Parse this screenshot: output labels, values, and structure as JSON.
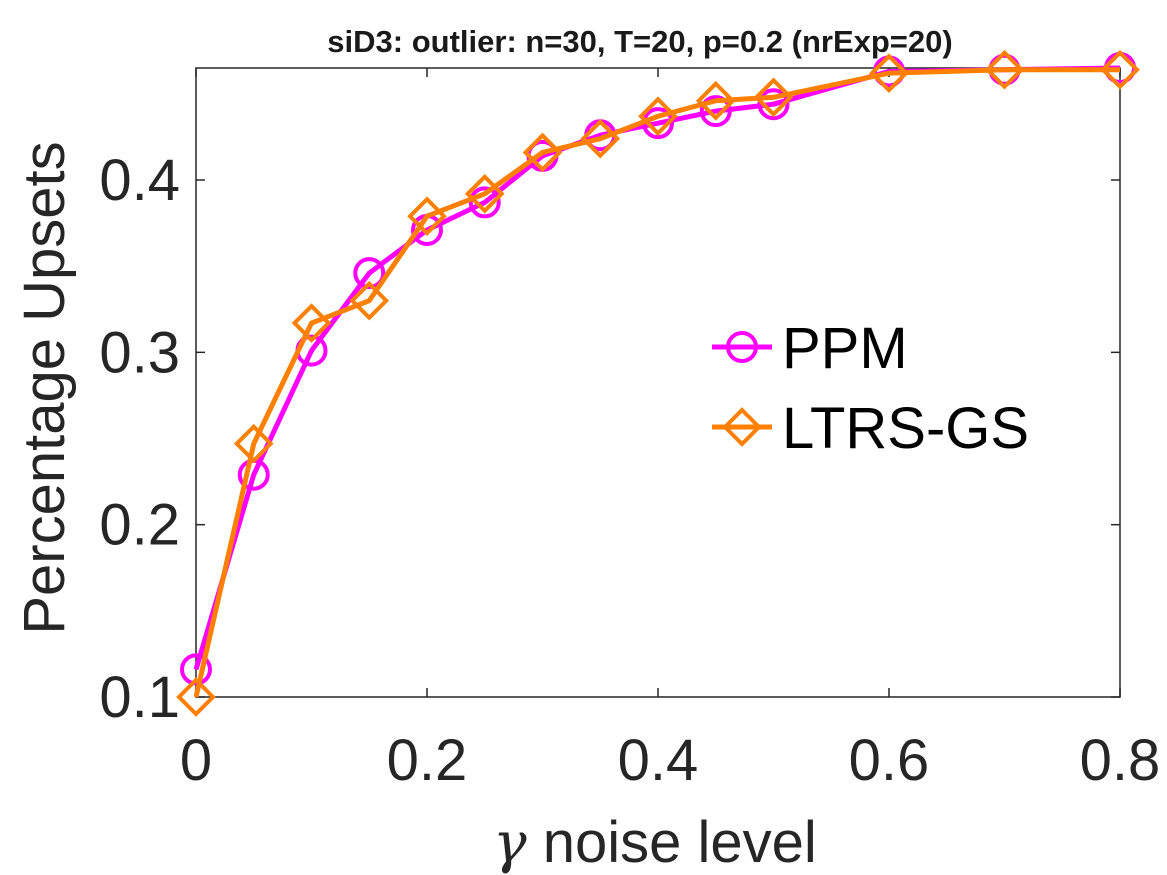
{
  "chart_data": {
    "type": "line",
    "title": "siD3: outlier: n=30, T=20, p=0.2 (nrExp=20)",
    "xlabel": {
      "symbol": "γ",
      "text": " noise level"
    },
    "ylabel": "Percentage Upsets",
    "xlim": [
      0,
      0.8
    ],
    "ylim": [
      0.1,
      0.465
    ],
    "xticks": [
      0,
      0.2,
      0.4,
      0.6,
      0.8
    ],
    "xtick_labels": [
      "0",
      "0.2",
      "0.4",
      "0.6",
      "0.8"
    ],
    "yticks": [
      0.1,
      0.2,
      0.3,
      0.4
    ],
    "ytick_labels": [
      "0.1",
      "0.2",
      "0.3",
      "0.4"
    ],
    "grid": false,
    "legend_position": "center-right",
    "x": [
      0,
      0.05,
      0.1,
      0.15,
      0.2,
      0.25,
      0.3,
      0.35,
      0.4,
      0.45,
      0.5,
      0.6,
      0.7,
      0.8
    ],
    "series": [
      {
        "name": "PPM",
        "color": "#ff00ff",
        "marker": "circle",
        "values": [
          0.116,
          0.229,
          0.301,
          0.346,
          0.371,
          0.387,
          0.414,
          0.426,
          0.433,
          0.44,
          0.444,
          0.463,
          0.464,
          0.465
        ]
      },
      {
        "name": "LTRS-GS",
        "color": "#ff8000",
        "marker": "diamond",
        "values": [
          0.1,
          0.247,
          0.317,
          0.33,
          0.379,
          0.392,
          0.416,
          0.424,
          0.437,
          0.446,
          0.448,
          0.462,
          0.464,
          0.464
        ]
      }
    ]
  }
}
